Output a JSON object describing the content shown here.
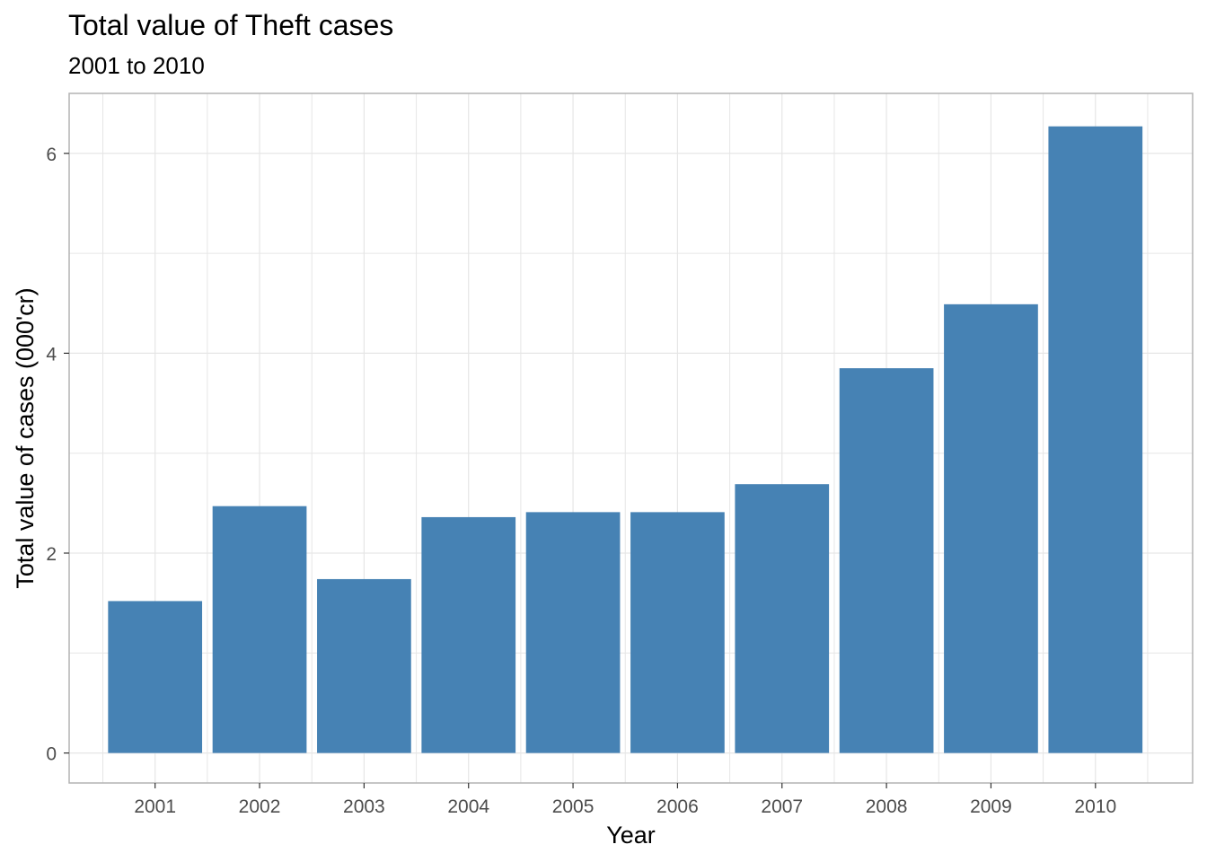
{
  "chart_data": {
    "type": "bar",
    "title": "Total value of Theft cases",
    "subtitle": "2001 to 2010",
    "xlabel": "Year",
    "ylabel": "Total value of cases (000'cr)",
    "categories": [
      "2001",
      "2002",
      "2003",
      "2004",
      "2005",
      "2006",
      "2007",
      "2008",
      "2009",
      "2010"
    ],
    "values": [
      1.52,
      2.47,
      1.74,
      2.36,
      2.41,
      2.41,
      2.69,
      3.85,
      4.49,
      6.27
    ],
    "ylim": [
      -0.3,
      6.6
    ],
    "yticks": [
      "0",
      "2",
      "4",
      "6"
    ],
    "grid": true,
    "legend": "none",
    "colors": {
      "bar": "#4682B4",
      "grid": "#e6e6e6",
      "panel_border": "#b3b3b3",
      "tick_text": "#4d4d4d"
    }
  }
}
